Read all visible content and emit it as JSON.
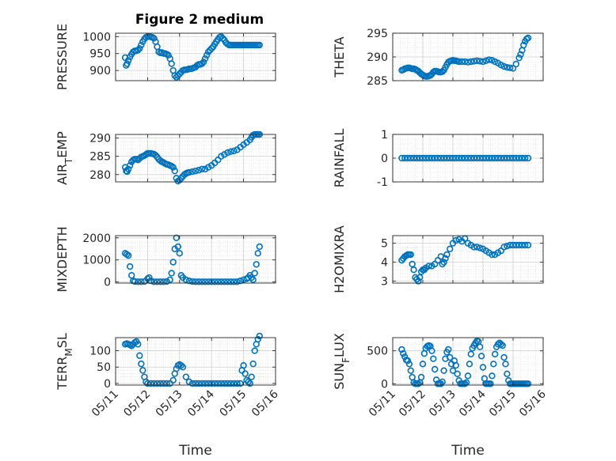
{
  "figure_title": "Figure 2 medium",
  "marker_color": "#0072bd",
  "chart_data": [
    {
      "type": "scatter",
      "name": "pressure",
      "ylabel": "PRESSURE",
      "ylim": [
        870,
        1010
      ],
      "yticks": [
        900,
        950,
        1000
      ],
      "ytick_labels": [
        "900",
        "950",
        "1000"
      ],
      "xlim": [
        0,
        5
      ],
      "show_xticklabels": false,
      "x": [
        0.3,
        0.33,
        0.36,
        0.4,
        0.45,
        0.5,
        0.55,
        0.6,
        0.65,
        0.7,
        0.75,
        0.8,
        0.85,
        0.9,
        0.95,
        1.0,
        1.05,
        1.1,
        1.15,
        1.2,
        1.25,
        1.3,
        1.35,
        1.4,
        1.45,
        1.5,
        1.55,
        1.6,
        1.65,
        1.7,
        1.75,
        1.8,
        1.85,
        1.9,
        1.95,
        2.0,
        2.05,
        2.1,
        2.15,
        2.2,
        2.25,
        2.3,
        2.35,
        2.4,
        2.45,
        2.5,
        2.55,
        2.6,
        2.65,
        2.7,
        2.75,
        2.8,
        2.85,
        2.9,
        2.95,
        3.0,
        3.05,
        3.1,
        3.15,
        3.2,
        3.25,
        3.3,
        3.35,
        3.4,
        3.45,
        3.5,
        3.55,
        3.6,
        3.65,
        3.7,
        3.75,
        3.8,
        3.85,
        3.9,
        3.95,
        4.0,
        4.05,
        4.1,
        4.15,
        4.2,
        4.25,
        4.3,
        4.35,
        4.4,
        4.45,
        4.5
      ],
      "y": [
        938,
        915,
        920,
        930,
        940,
        948,
        955,
        958,
        958,
        960,
        965,
        975,
        985,
        993,
        998,
        1000,
        1000,
        999,
        998,
        995,
        985,
        970,
        955,
        952,
        953,
        950,
        950,
        948,
        945,
        935,
        920,
        900,
        885,
        880,
        885,
        890,
        895,
        900,
        902,
        902,
        903,
        905,
        905,
        906,
        908,
        910,
        915,
        918,
        918,
        920,
        925,
        935,
        945,
        955,
        960,
        965,
        970,
        978,
        985,
        992,
        998,
        1000,
        995,
        990,
        982,
        978,
        975,
        975,
        975,
        975,
        975,
        975,
        975,
        975,
        975,
        975,
        975,
        975,
        975,
        975,
        975,
        975,
        975,
        975,
        975,
        975
      ]
    },
    {
      "type": "scatter",
      "name": "theta",
      "ylabel": "THETA",
      "ylim": [
        285,
        295
      ],
      "yticks": [
        285,
        290,
        295
      ],
      "ytick_labels": [
        "285",
        "290",
        "295"
      ],
      "xlim": [
        0,
        5
      ],
      "show_xticklabels": false,
      "x": [
        0.3,
        0.35,
        0.4,
        0.45,
        0.5,
        0.55,
        0.6,
        0.65,
        0.7,
        0.75,
        0.8,
        0.85,
        0.9,
        0.95,
        1.0,
        1.05,
        1.1,
        1.15,
        1.2,
        1.25,
        1.3,
        1.35,
        1.4,
        1.45,
        1.5,
        1.55,
        1.6,
        1.65,
        1.7,
        1.75,
        1.8,
        1.85,
        1.9,
        1.95,
        2.0,
        2.05,
        2.1,
        2.15,
        2.2,
        2.3,
        2.4,
        2.5,
        2.6,
        2.7,
        2.8,
        2.9,
        3.0,
        3.1,
        3.2,
        3.3,
        3.4,
        3.5,
        3.6,
        3.7,
        3.8,
        3.9,
        4.0,
        4.1,
        4.2,
        4.25,
        4.3,
        4.35,
        4.4,
        4.45,
        4.5
      ],
      "y": [
        287.2,
        287.3,
        287.5,
        287.6,
        287.7,
        287.7,
        287.6,
        287.5,
        287.5,
        287.4,
        287.2,
        287.0,
        286.7,
        286.4,
        286.2,
        286.0,
        285.9,
        285.9,
        286.0,
        286.1,
        286.4,
        286.8,
        287.0,
        287.0,
        286.9,
        286.8,
        286.8,
        286.9,
        287.2,
        287.8,
        288.4,
        288.9,
        289.1,
        289.2,
        289.3,
        289.2,
        289.2,
        289.1,
        289.0,
        289.0,
        289.0,
        288.9,
        289.0,
        289.1,
        289.2,
        289.1,
        289.0,
        289.2,
        289.4,
        289.3,
        289.0,
        288.7,
        288.3,
        288.0,
        287.8,
        287.7,
        287.6,
        288.5,
        289.8,
        290.5,
        291.4,
        292.5,
        293.3,
        293.8,
        294.0
      ]
    },
    {
      "type": "scatter",
      "name": "air_temp",
      "ylabel": "AIR_TEMP",
      "ylim": [
        278,
        291
      ],
      "yticks": [
        280,
        285,
        290
      ],
      "ytick_labels": [
        "280",
        "285",
        "290"
      ],
      "xlim": [
        0,
        5
      ],
      "show_xticklabels": false,
      "x": [
        0.3,
        0.33,
        0.36,
        0.4,
        0.45,
        0.5,
        0.55,
        0.6,
        0.65,
        0.7,
        0.75,
        0.8,
        0.85,
        0.9,
        0.95,
        1.0,
        1.05,
        1.1,
        1.15,
        1.2,
        1.25,
        1.3,
        1.35,
        1.4,
        1.45,
        1.5,
        1.55,
        1.6,
        1.65,
        1.7,
        1.75,
        1.8,
        1.85,
        1.9,
        1.95,
        2.0,
        2.05,
        2.1,
        2.15,
        2.2,
        2.25,
        2.3,
        2.4,
        2.5,
        2.6,
        2.7,
        2.8,
        2.9,
        3.0,
        3.1,
        3.2,
        3.3,
        3.4,
        3.5,
        3.6,
        3.7,
        3.8,
        3.9,
        4.0,
        4.1,
        4.2,
        4.25,
        4.3,
        4.35,
        4.4,
        4.45,
        4.5
      ],
      "y": [
        282.0,
        281.0,
        280.8,
        281.5,
        282.5,
        283.5,
        284.0,
        284.2,
        284.2,
        284.0,
        284.4,
        284.8,
        285.0,
        285.2,
        285.5,
        285.8,
        285.8,
        285.8,
        285.7,
        285.6,
        285.3,
        284.8,
        284.2,
        283.8,
        283.5,
        283.3,
        283.0,
        282.8,
        282.7,
        282.5,
        282.3,
        282.0,
        281.0,
        279.0,
        278.2,
        278.5,
        279.0,
        279.5,
        280.0,
        280.3,
        280.5,
        280.6,
        280.8,
        281.0,
        281.2,
        281.5,
        281.5,
        282.0,
        282.5,
        283.2,
        284.0,
        285.0,
        285.5,
        286.0,
        286.3,
        286.5,
        286.8,
        287.5,
        288.2,
        288.8,
        289.5,
        290.2,
        290.8,
        291.0,
        291.0,
        291.0,
        291.0
      ]
    },
    {
      "type": "scatter",
      "name": "rainfall",
      "ylabel": "RAINFALL",
      "ylim": [
        -1,
        1
      ],
      "yticks": [
        -1,
        0,
        1
      ],
      "ytick_labels": [
        "-1",
        "0",
        "1"
      ],
      "xlim": [
        0,
        5
      ],
      "show_xticklabels": false,
      "x": [
        0.3,
        0.4,
        0.5,
        0.6,
        0.7,
        0.8,
        0.9,
        1.0,
        1.1,
        1.2,
        1.3,
        1.4,
        1.5,
        1.6,
        1.7,
        1.8,
        1.9,
        2.0,
        2.1,
        2.2,
        2.3,
        2.4,
        2.5,
        2.6,
        2.7,
        2.8,
        2.9,
        3.0,
        3.1,
        3.2,
        3.3,
        3.4,
        3.5,
        3.6,
        3.7,
        3.8,
        3.9,
        4.0,
        4.1,
        4.2,
        4.3,
        4.4,
        4.5
      ],
      "y": [
        0,
        0,
        0,
        0,
        0,
        0,
        0,
        0,
        0,
        0,
        0,
        0,
        0,
        0,
        0,
        0,
        0,
        0,
        0,
        0,
        0,
        0,
        0,
        0,
        0,
        0,
        0,
        0,
        0,
        0,
        0,
        0,
        0,
        0,
        0,
        0,
        0,
        0,
        0,
        0,
        0,
        0,
        0
      ]
    },
    {
      "type": "scatter",
      "name": "mixdepth",
      "ylabel": "MIXDEPTH",
      "ylim": [
        -50,
        2100
      ],
      "yticks": [
        0,
        1000,
        2000
      ],
      "ytick_labels": [
        "0",
        "1000",
        "2000"
      ],
      "xlim": [
        0,
        5
      ],
      "show_xticklabels": false,
      "x": [
        0.3,
        0.35,
        0.4,
        0.45,
        0.5,
        0.55,
        0.6,
        0.7,
        0.8,
        0.9,
        1.0,
        1.05,
        1.1,
        1.2,
        1.3,
        1.4,
        1.5,
        1.6,
        1.7,
        1.75,
        1.8,
        1.85,
        1.9,
        1.95,
        2.0,
        2.05,
        2.1,
        2.2,
        2.3,
        2.4,
        2.5,
        2.6,
        2.7,
        2.8,
        2.9,
        3.0,
        3.1,
        3.2,
        3.3,
        3.4,
        3.5,
        3.6,
        3.7,
        3.8,
        3.9,
        4.0,
        4.1,
        4.15,
        4.2,
        4.25,
        4.3,
        4.35,
        4.4,
        4.45,
        4.5
      ],
      "y": [
        1300,
        1250,
        1200,
        700,
        300,
        50,
        20,
        10,
        10,
        20,
        150,
        200,
        50,
        10,
        10,
        10,
        10,
        20,
        100,
        400,
        900,
        1500,
        2000,
        1600,
        1300,
        300,
        200,
        100,
        50,
        20,
        10,
        10,
        10,
        10,
        10,
        10,
        10,
        10,
        10,
        10,
        10,
        10,
        10,
        10,
        50,
        100,
        150,
        200,
        300,
        200,
        100,
        400,
        800,
        1300,
        1600
      ]
    },
    {
      "type": "scatter",
      "name": "h2omixra",
      "ylabel": "H2OMIXRA",
      "ylim": [
        2.9,
        5.4
      ],
      "yticks": [
        3,
        4,
        5
      ],
      "ytick_labels": [
        "3",
        "4",
        "5"
      ],
      "xlim": [
        0,
        5
      ],
      "show_xticklabels": false,
      "x": [
        0.3,
        0.35,
        0.4,
        0.45,
        0.5,
        0.55,
        0.6,
        0.65,
        0.7,
        0.75,
        0.8,
        0.85,
        0.9,
        0.95,
        1.0,
        1.05,
        1.1,
        1.2,
        1.3,
        1.4,
        1.5,
        1.6,
        1.65,
        1.7,
        1.75,
        1.8,
        1.9,
        2.0,
        2.1,
        2.2,
        2.3,
        2.4,
        2.5,
        2.6,
        2.7,
        2.8,
        2.9,
        3.0,
        3.1,
        3.2,
        3.3,
        3.4,
        3.5,
        3.6,
        3.7,
        3.8,
        3.9,
        4.0,
        4.1,
        4.2,
        4.3,
        4.4,
        4.5
      ],
      "y": [
        4.1,
        4.2,
        4.3,
        4.35,
        4.4,
        4.4,
        4.4,
        3.9,
        3.6,
        3.2,
        3.1,
        3.0,
        3.2,
        3.5,
        3.6,
        3.6,
        3.7,
        3.8,
        3.8,
        3.9,
        4.1,
        4.3,
        3.9,
        4.0,
        4.2,
        4.4,
        4.7,
        5.0,
        5.15,
        5.2,
        5.1,
        5.25,
        5.0,
        4.9,
        4.8,
        4.8,
        4.75,
        4.7,
        4.6,
        4.5,
        4.4,
        4.4,
        4.5,
        4.6,
        4.8,
        4.85,
        4.9,
        4.9,
        4.9,
        4.9,
        4.9,
        4.9,
        4.9
      ]
    },
    {
      "type": "scatter",
      "name": "terr_msl",
      "ylabel": "TERR_MSL",
      "ylim": [
        -5,
        140
      ],
      "yticks": [
        0,
        50,
        100
      ],
      "ytick_labels": [
        "0",
        "50",
        "100"
      ],
      "xlim": [
        0,
        5
      ],
      "show_xticklabels": true,
      "xlabel": "Time",
      "xticks": [
        0,
        1,
        2,
        3,
        4,
        5
      ],
      "xtick_labels": [
        "05/11",
        "05/12",
        "05/13",
        "05/14",
        "05/15",
        "05/16"
      ],
      "x": [
        0.3,
        0.35,
        0.4,
        0.45,
        0.5,
        0.55,
        0.6,
        0.65,
        0.7,
        0.75,
        0.8,
        0.85,
        0.9,
        0.95,
        1.0,
        1.1,
        1.2,
        1.3,
        1.4,
        1.5,
        1.6,
        1.7,
        1.8,
        1.85,
        1.9,
        1.95,
        2.0,
        2.05,
        2.1,
        2.2,
        2.3,
        2.4,
        2.5,
        2.6,
        2.7,
        2.8,
        2.9,
        3.0,
        3.1,
        3.2,
        3.3,
        3.4,
        3.5,
        3.6,
        3.7,
        3.8,
        3.9,
        3.95,
        4.0,
        4.05,
        4.1,
        4.15,
        4.2,
        4.25,
        4.3,
        4.35,
        4.4,
        4.45,
        4.5
      ],
      "y": [
        120,
        122,
        120,
        118,
        115,
        120,
        125,
        128,
        120,
        85,
        60,
        40,
        20,
        5,
        0,
        0,
        0,
        0,
        0,
        0,
        0,
        0,
        10,
        30,
        45,
        55,
        58,
        55,
        50,
        20,
        5,
        0,
        0,
        0,
        0,
        0,
        0,
        0,
        0,
        0,
        0,
        0,
        0,
        0,
        0,
        0,
        0,
        40,
        55,
        30,
        10,
        5,
        0,
        20,
        60,
        100,
        120,
        135,
        145
      ]
    },
    {
      "type": "scatter",
      "name": "sun_flux",
      "ylabel": "SUN_FLUX",
      "ylim": [
        -20,
        700
      ],
      "yticks": [
        0,
        500
      ],
      "ytick_labels": [
        "0",
        "500"
      ],
      "xlim": [
        0,
        5
      ],
      "show_xticklabels": true,
      "xlabel": "Time",
      "xticks": [
        0,
        1,
        2,
        3,
        4,
        5
      ],
      "xtick_labels": [
        "05/11",
        "05/12",
        "05/13",
        "05/14",
        "05/15",
        "05/16"
      ],
      "x": [
        0.3,
        0.35,
        0.4,
        0.45,
        0.5,
        0.55,
        0.6,
        0.65,
        0.7,
        0.75,
        0.8,
        0.85,
        0.9,
        0.95,
        1.0,
        1.05,
        1.1,
        1.15,
        1.2,
        1.25,
        1.3,
        1.35,
        1.4,
        1.45,
        1.5,
        1.55,
        1.6,
        1.65,
        1.7,
        1.75,
        1.8,
        1.85,
        1.9,
        1.95,
        2.0,
        2.05,
        2.1,
        2.15,
        2.2,
        2.25,
        2.3,
        2.35,
        2.4,
        2.45,
        2.5,
        2.55,
        2.6,
        2.65,
        2.7,
        2.75,
        2.8,
        2.85,
        2.9,
        2.95,
        3.0,
        3.05,
        3.1,
        3.15,
        3.2,
        3.25,
        3.3,
        3.35,
        3.4,
        3.45,
        3.5,
        3.55,
        3.6,
        3.65,
        3.7,
        3.75,
        3.8,
        3.85,
        3.9,
        3.95,
        4.0,
        4.05,
        4.1,
        4.15,
        4.2,
        4.25,
        4.3,
        4.35,
        4.4,
        4.45,
        4.5
      ],
      "y": [
        520,
        460,
        410,
        360,
        350,
        300,
        200,
        100,
        20,
        0,
        0,
        0,
        20,
        100,
        300,
        460,
        540,
        570,
        580,
        570,
        500,
        380,
        220,
        60,
        0,
        0,
        0,
        30,
        200,
        380,
        480,
        520,
        400,
        300,
        200,
        350,
        280,
        150,
        50,
        0,
        0,
        0,
        0,
        20,
        120,
        300,
        450,
        540,
        580,
        620,
        650,
        640,
        560,
        420,
        250,
        80,
        0,
        0,
        0,
        0,
        120,
        300,
        450,
        560,
        600,
        620,
        600,
        580,
        400,
        300,
        150,
        50,
        0,
        0,
        0,
        0,
        0,
        0,
        0,
        0,
        0,
        0,
        0,
        0,
        0
      ]
    }
  ]
}
